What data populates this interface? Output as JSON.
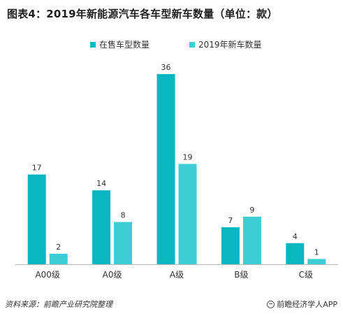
{
  "title": "图表4：2019年新能源汽车各车型新车数量（单位：款）",
  "footer": {
    "source": "资料来源：前瞻产业研究院整理",
    "brand": "前瞻经济学人APP"
  },
  "colors": {
    "series1": "#0ab7c0",
    "series2": "#3dcdd5",
    "axis": "#bbbbbb",
    "label": "#333333"
  },
  "chart_data": {
    "type": "bar",
    "title": "图表4：2019年新能源汽车各车型新车数量（单位：款）",
    "xlabel": "",
    "ylabel": "",
    "ylim": [
      0,
      36
    ],
    "grid": false,
    "legend_position": "top-center",
    "categories": [
      "A00级",
      "A0级",
      "A级",
      "B级",
      "C级"
    ],
    "series": [
      {
        "name": "在售车型数量",
        "values": [
          17,
          14,
          36,
          7,
          4
        ]
      },
      {
        "name": "2019年新车数量",
        "values": [
          2,
          8,
          19,
          9,
          1
        ]
      }
    ]
  }
}
